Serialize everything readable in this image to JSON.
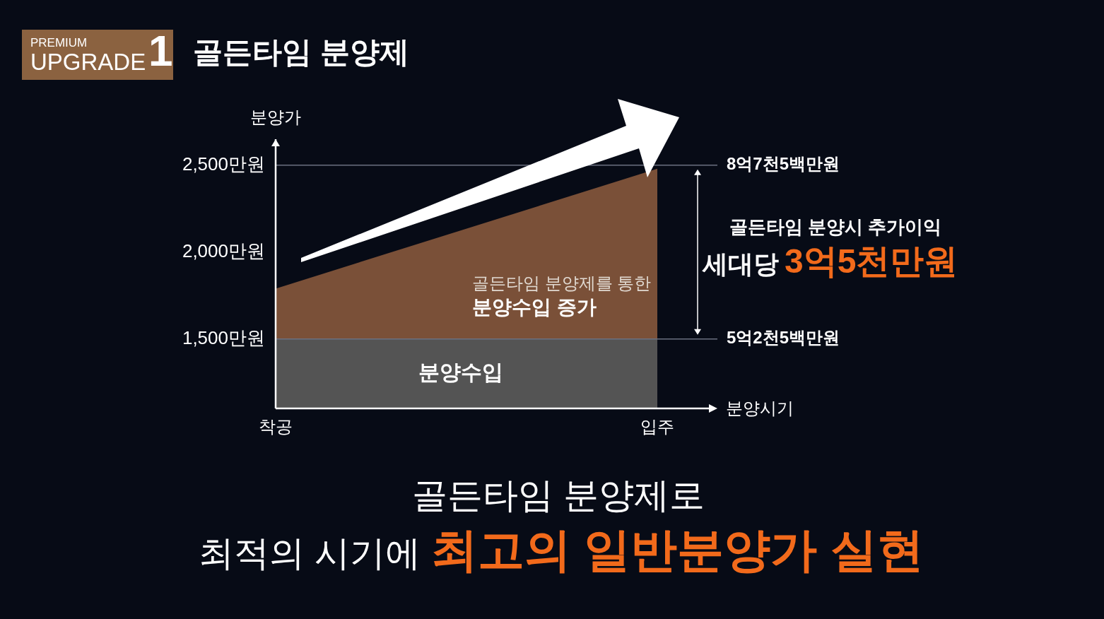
{
  "chart_data": {
    "type": "area",
    "title": "골든타임 분양제",
    "xlabel": "분양시기",
    "ylabel": "분양가",
    "categories": [
      "착공",
      "입주"
    ],
    "series": [
      {
        "name": "골든타임 분양제를 통한\n분양수입 증가",
        "color": "#7a5038",
        "values": [
          1790,
          2480
        ]
      },
      {
        "name": "분양수입",
        "color": "#545454",
        "values": [
          1500,
          1500
        ]
      }
    ],
    "ylim": [
      1100,
      2650
    ],
    "yticks": [
      {
        "value": 1500,
        "label": "1,500만원"
      },
      {
        "value": 2000,
        "label": "2,000만원"
      },
      {
        "value": 2500,
        "label": "2,500만원"
      }
    ],
    "ref_lines": [
      {
        "axis": "y",
        "value": 2500,
        "label": "8억7천5백만원",
        "color": "#6b7080"
      },
      {
        "axis": "y",
        "value": 1500,
        "label": "5억2천5백만원",
        "color": "#6b7080"
      }
    ],
    "annotations": [
      "PREMIUM",
      "UPGRADE",
      "1",
      "골든타임 분양시 추가이익",
      "세대당",
      "3억5천만원",
      "골든타임 분양제로",
      "최적의 시기에",
      "최고의 일반분양가 실현"
    ]
  }
}
